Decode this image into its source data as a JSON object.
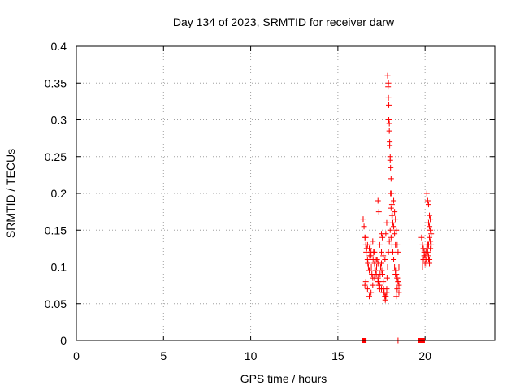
{
  "chart_data": {
    "type": "scatter",
    "title": "Day 134 of 2023, SRMTID for receiver darw",
    "xlabel": "GPS time / hours",
    "ylabel": "SRMTID / TECUs",
    "xlim": [
      0,
      24
    ],
    "ylim": [
      0,
      0.4
    ],
    "xticks": [
      "0",
      "5",
      "10",
      "15",
      "20"
    ],
    "yticks": [
      "0",
      "0.05",
      "0.1",
      "0.15",
      "0.2",
      "0.25",
      "0.3",
      "0.35",
      "0.4"
    ],
    "grid": true,
    "marker_color": "#ff0000",
    "zero_markers": [
      {
        "x": 16.5,
        "y": 0
      },
      {
        "x": 19.75,
        "y": 0
      },
      {
        "x": 19.85,
        "y": 0
      }
    ],
    "series": [
      {
        "marker": "plus",
        "x": [
          16.45,
          16.5,
          16.55,
          16.6,
          16.62,
          16.65,
          16.7,
          16.72,
          16.75,
          16.8,
          16.82,
          16.85,
          16.9,
          16.92,
          16.95,
          17.0,
          17.02,
          17.05,
          17.1,
          17.12,
          17.15,
          17.2,
          17.22,
          17.25,
          17.3,
          17.32,
          17.35,
          17.4,
          17.42,
          17.45,
          17.5,
          17.52,
          17.55,
          17.6,
          17.62,
          17.65,
          17.7,
          17.72,
          17.75,
          17.8,
          17.82,
          17.85,
          17.9,
          17.95,
          18.0,
          18.05,
          18.1,
          18.15,
          18.2,
          18.25,
          18.3,
          18.35,
          18.4,
          18.45,
          18.5,
          16.55,
          16.6,
          16.7,
          16.8,
          16.9,
          17.0,
          17.1,
          17.2,
          17.3,
          17.4,
          17.5,
          17.6,
          17.7,
          17.8,
          16.6,
          16.7,
          16.8,
          16.9,
          17.0,
          17.1,
          17.2,
          17.3,
          17.4,
          17.5,
          17.6,
          17.7,
          17.3,
          17.35,
          17.5,
          17.55,
          17.75,
          17.8,
          17.85,
          17.88,
          17.9,
          17.92,
          17.95,
          17.97,
          18.0,
          18.02,
          18.05,
          18.07,
          18.1,
          18.12,
          17.9,
          17.92,
          17.95,
          17.97,
          18.0,
          18.02,
          18.05,
          18.1,
          18.15,
          18.2,
          18.25,
          18.3,
          18.2,
          18.25,
          18.3,
          18.35,
          18.4,
          18.45,
          18.5,
          18.3,
          18.35,
          18.4,
          18.45,
          18.5,
          18.35,
          18.4,
          19.8,
          19.85,
          19.9,
          19.95,
          20.0,
          20.05,
          20.1,
          20.15,
          20.2,
          20.25,
          20.3,
          19.85,
          19.9,
          19.95,
          20.0,
          20.05,
          20.1,
          20.15,
          20.2,
          20.25,
          20.3,
          20.35,
          20.1,
          20.15,
          20.2,
          20.25,
          20.3,
          20.2,
          20.25,
          20.3,
          20.35,
          20.2,
          20.25,
          18.45
        ],
        "y": [
          0.165,
          0.155,
          0.14,
          0.13,
          0.12,
          0.125,
          0.11,
          0.105,
          0.1,
          0.095,
          0.115,
          0.13,
          0.12,
          0.1,
          0.09,
          0.085,
          0.11,
          0.12,
          0.105,
          0.1,
          0.095,
          0.09,
          0.1,
          0.11,
          0.085,
          0.08,
          0.075,
          0.07,
          0.09,
          0.1,
          0.105,
          0.095,
          0.09,
          0.08,
          0.07,
          0.065,
          0.06,
          0.055,
          0.06,
          0.07,
          0.085,
          0.1,
          0.12,
          0.135,
          0.15,
          0.14,
          0.13,
          0.12,
          0.11,
          0.1,
          0.095,
          0.09,
          0.085,
          0.08,
          0.075,
          0.075,
          0.08,
          0.07,
          0.06,
          0.065,
          0.075,
          0.085,
          0.09,
          0.08,
          0.075,
          0.07,
          0.065,
          0.06,
          0.065,
          0.14,
          0.13,
          0.125,
          0.115,
          0.135,
          0.12,
          0.11,
          0.105,
          0.13,
          0.12,
          0.115,
          0.11,
          0.19,
          0.175,
          0.145,
          0.14,
          0.145,
          0.16,
          0.36,
          0.345,
          0.33,
          0.3,
          0.285,
          0.27,
          0.25,
          0.235,
          0.22,
          0.2,
          0.185,
          0.17,
          0.35,
          0.32,
          0.295,
          0.265,
          0.245,
          0.2,
          0.18,
          0.17,
          0.16,
          0.155,
          0.145,
          0.13,
          0.19,
          0.175,
          0.165,
          0.15,
          0.13,
          0.12,
          0.1,
          0.09,
          0.095,
          0.085,
          0.08,
          0.065,
          0.06,
          0.07,
          0.14,
          0.13,
          0.125,
          0.12,
          0.115,
          0.11,
          0.105,
          0.12,
          0.13,
          0.14,
          0.135,
          0.1,
          0.11,
          0.115,
          0.105,
          0.12,
          0.125,
          0.13,
          0.115,
          0.11,
          0.125,
          0.13,
          0.2,
          0.19,
          0.185,
          0.17,
          0.165,
          0.16,
          0.155,
          0.15,
          0.145,
          0.11,
          0.105,
          0.0
        ]
      }
    ]
  }
}
